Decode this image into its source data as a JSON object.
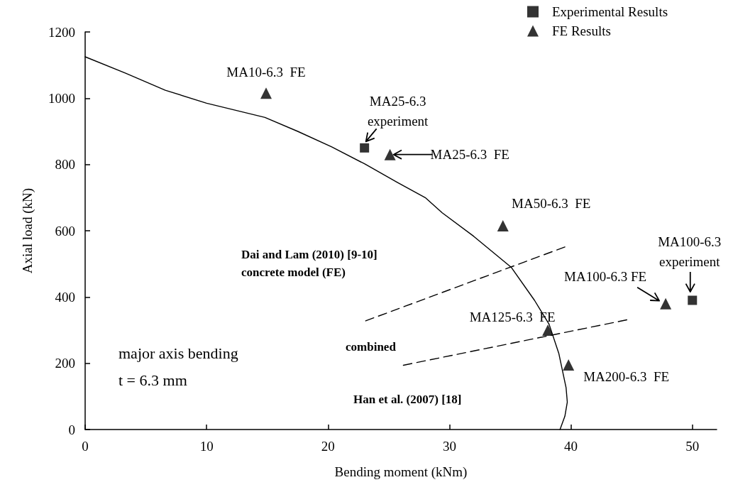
{
  "chart_data": {
    "type": "scatter",
    "xlabel": "Bending moment (kNm)",
    "ylabel": "Axial load (kN)",
    "xlim": [
      0,
      52
    ],
    "xticks": [
      0,
      10,
      20,
      30,
      40,
      50
    ],
    "ylim": [
      0,
      1200
    ],
    "yticks": [
      0,
      200,
      400,
      600,
      800,
      1000,
      1200
    ],
    "grid": false,
    "legend": "top right",
    "series": [
      {
        "name": "Experimental Results",
        "marker": "square",
        "color": "#000000",
        "x": [
          23,
          50
        ],
        "values": [
          850,
          390
        ]
      },
      {
        "name": "FE Results",
        "marker": "triangle",
        "color": "#000000",
        "x": [
          14.9,
          25.1,
          34.4,
          47.8,
          38.1,
          39.8
        ],
        "values": [
          1015,
          830,
          615,
          380,
          300,
          195
        ]
      },
      {
        "type": "line",
        "marker": "none",
        "line_style": "solid",
        "color": "#000000",
        "x": [
          0,
          3.3,
          6.6,
          10,
          14.8,
          17.5,
          20.3,
          23,
          25.7,
          28,
          29.4,
          32,
          35.1,
          37,
          38.2,
          39,
          39.6,
          39.7,
          39.5,
          39.1
        ],
        "values": [
          1125,
          1076,
          1024,
          985,
          942,
          900,
          853,
          802,
          746,
          700,
          654,
          583,
          489,
          390,
          318,
          230,
          126,
          83,
          40,
          0
        ]
      },
      {
        "type": "line",
        "marker": "none",
        "line_style": "dashed",
        "color": "#000000",
        "x": [
          23.1,
          39.5
        ],
        "values": [
          328,
          551
        ]
      },
      {
        "type": "line",
        "marker": "none",
        "line_style": "dashed",
        "color": "#000000",
        "x": [
          26.2,
          44.6
        ],
        "values": [
          194,
          331
        ]
      }
    ],
    "annotations": [
      {
        "text": "MA10-6.3  FE",
        "x": 14.9,
        "y": 1015
      },
      {
        "text": "MA25-6.3\nexperiment",
        "x": 23,
        "y": 850
      },
      {
        "text": "MA25-6.3  FE",
        "x": 25.1,
        "y": 830
      },
      {
        "text": "MA50-6.3  FE",
        "x": 34.4,
        "y": 615
      },
      {
        "text": "MA100-6.3 FE",
        "x": 47.8,
        "y": 380
      },
      {
        "text": "MA100-6.3\nexperiment",
        "x": 50,
        "y": 390
      },
      {
        "text": "MA125-6.3  FE",
        "x": 38.1,
        "y": 300
      },
      {
        "text": "MA200-6.3  FE",
        "x": 39.8,
        "y": 195
      },
      "Dai and Lam (2010) [9-10]\nconcrete model (FE)",
      "combined",
      "Han et al. (2007) [18]",
      "major axis bending\nt = 6.3 mm"
    ]
  }
}
